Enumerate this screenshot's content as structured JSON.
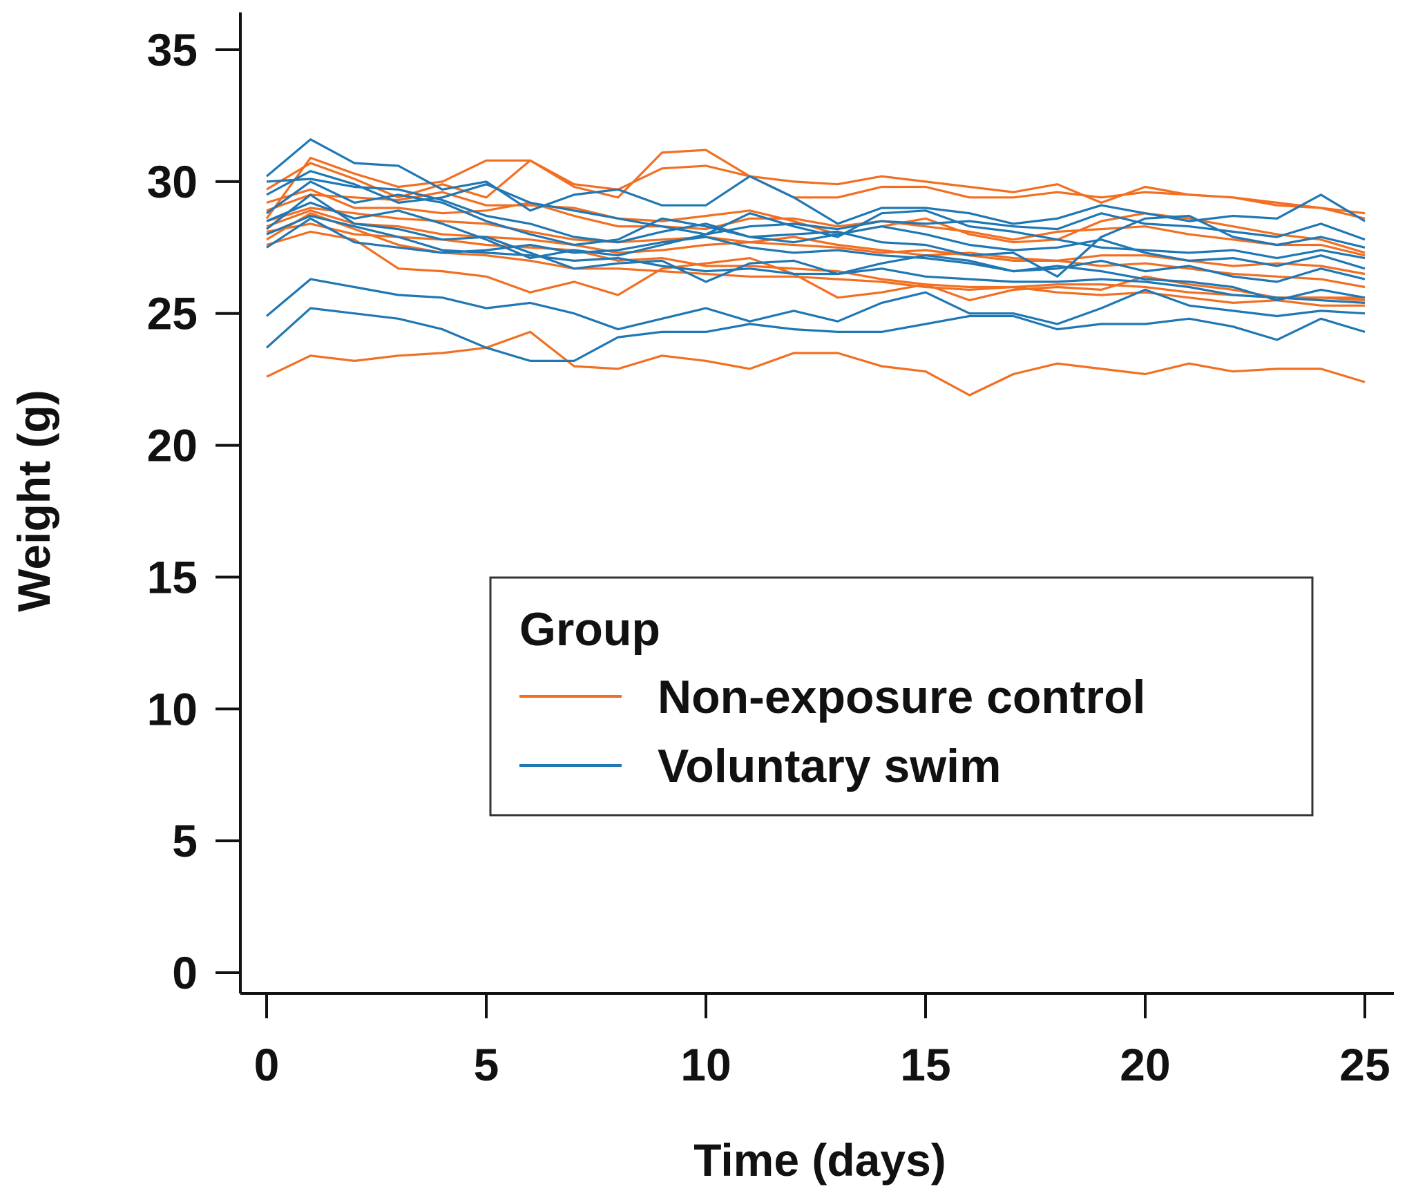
{
  "chart_data": {
    "type": "line",
    "title": "",
    "xlabel": "Time (days)",
    "ylabel": "Weight (g)",
    "xlim": [
      0,
      25
    ],
    "ylim": [
      0,
      35
    ],
    "xticks": [
      "0",
      "5",
      "10",
      "15",
      "20",
      "25"
    ],
    "yticks": [
      "0",
      "5",
      "10",
      "15",
      "20",
      "25",
      "30",
      "35"
    ],
    "grid": false,
    "legend": {
      "title": "Group",
      "position": "center-right",
      "entries": [
        {
          "name": "Non-exposure control",
          "color": "#f26f21"
        },
        {
          "name": "Voluntary swim",
          "color": "#1f77b4"
        }
      ]
    },
    "x": [
      0,
      1,
      2,
      3,
      4,
      5,
      6,
      7,
      8,
      9,
      10,
      11,
      12,
      13,
      14,
      15,
      16,
      17,
      18,
      19,
      20,
      21,
      22,
      23,
      24,
      25
    ],
    "series": [
      {
        "group": "Non-exposure control",
        "color": "#f26f21",
        "values": [
          22.6,
          23.4,
          23.2,
          23.4,
          23.5,
          23.7,
          24.3,
          23.0,
          22.9,
          23.4,
          23.2,
          22.9,
          23.5,
          23.5,
          23.0,
          22.8,
          21.9,
          22.7,
          23.1,
          22.9,
          22.7,
          23.1,
          22.8,
          22.9,
          22.9,
          22.4
        ]
      },
      {
        "group": "Non-exposure control",
        "color": "#f26f21",
        "values": [
          27.6,
          28.1,
          27.8,
          26.7,
          26.6,
          26.4,
          25.8,
          26.2,
          25.7,
          26.7,
          26.9,
          27.1,
          26.5,
          25.6,
          25.8,
          26.1,
          25.5,
          25.9,
          26.0,
          25.9,
          26.4,
          26.1,
          25.9,
          25.6,
          25.6,
          25.5
        ]
      },
      {
        "group": "Non-exposure control",
        "color": "#f26f21",
        "values": [
          28.6,
          30.9,
          30.3,
          29.8,
          30.0,
          30.8,
          30.8,
          29.8,
          29.4,
          31.1,
          31.2,
          30.2,
          30.0,
          29.9,
          30.2,
          30.0,
          29.8,
          29.6,
          29.9,
          29.2,
          29.8,
          29.5,
          29.4,
          29.2,
          29.0,
          28.8
        ]
      },
      {
        "group": "Non-exposure control",
        "color": "#f26f21",
        "values": [
          29.7,
          30.7,
          30.1,
          29.4,
          29.9,
          29.4,
          30.8,
          29.9,
          29.7,
          30.5,
          30.6,
          30.2,
          29.4,
          29.4,
          29.8,
          29.8,
          29.4,
          29.4,
          29.6,
          29.4,
          29.6,
          29.5,
          29.4,
          29.1,
          29.0,
          28.6
        ]
      },
      {
        "group": "Non-exposure control",
        "color": "#f26f21",
        "values": [
          28.9,
          29.5,
          29.4,
          29.3,
          29.6,
          29.1,
          29.1,
          29.0,
          28.6,
          28.5,
          28.7,
          28.9,
          28.5,
          28.0,
          28.3,
          28.6,
          28.0,
          27.7,
          27.8,
          28.5,
          28.8,
          28.6,
          28.3,
          28.0,
          27.8,
          27.3
        ]
      },
      {
        "group": "Non-exposure control",
        "color": "#f26f21",
        "values": [
          28.5,
          29.0,
          28.8,
          28.6,
          28.5,
          28.4,
          28.1,
          27.8,
          27.7,
          27.8,
          27.9,
          27.7,
          27.9,
          27.6,
          27.4,
          27.2,
          27.3,
          27.1,
          27.0,
          27.2,
          27.2,
          27.0,
          26.8,
          26.9,
          26.8,
          26.5
        ]
      },
      {
        "group": "Non-exposure control",
        "color": "#f26f21",
        "values": [
          28.1,
          28.4,
          28.0,
          27.9,
          27.8,
          27.6,
          27.5,
          27.4,
          27.0,
          27.1,
          26.8,
          26.8,
          26.7,
          26.6,
          26.3,
          26.1,
          26.0,
          26.0,
          25.8,
          25.7,
          25.8,
          25.6,
          25.4,
          25.5,
          25.3,
          25.3
        ]
      },
      {
        "group": "Non-exposure control",
        "color": "#f26f21",
        "values": [
          27.8,
          28.8,
          28.2,
          27.6,
          27.3,
          27.2,
          27.0,
          26.7,
          26.7,
          26.6,
          26.5,
          26.4,
          26.4,
          26.3,
          26.2,
          26.0,
          25.9,
          26.0,
          26.1,
          26.1,
          26.0,
          25.8,
          25.7,
          25.6,
          25.6,
          25.6
        ]
      },
      {
        "group": "Non-exposure control",
        "color": "#f26f21",
        "values": [
          29.2,
          29.7,
          29.0,
          29.0,
          28.8,
          28.9,
          29.2,
          28.7,
          28.3,
          28.3,
          28.2,
          28.6,
          28.6,
          28.3,
          28.5,
          28.3,
          28.1,
          27.8,
          28.1,
          28.2,
          28.3,
          28.0,
          27.8,
          27.6,
          27.6,
          27.2
        ]
      },
      {
        "group": "Non-exposure control",
        "color": "#f26f21",
        "values": [
          28.3,
          28.9,
          28.4,
          28.3,
          28.0,
          27.9,
          27.8,
          27.6,
          27.3,
          27.4,
          27.6,
          27.7,
          27.6,
          27.5,
          27.3,
          27.4,
          27.2,
          27.0,
          27.0,
          26.8,
          26.9,
          26.7,
          26.5,
          26.4,
          26.3,
          26.0
        ]
      },
      {
        "group": "Voluntary swim",
        "color": "#1f77b4",
        "values": [
          23.7,
          25.2,
          25.0,
          24.8,
          24.4,
          23.7,
          23.2,
          23.2,
          24.1,
          24.3,
          24.3,
          24.6,
          24.4,
          24.3,
          24.3,
          24.6,
          24.9,
          24.9,
          24.4,
          24.6,
          24.6,
          24.8,
          24.5,
          24.0,
          24.8,
          24.3
        ]
      },
      {
        "group": "Voluntary swim",
        "color": "#1f77b4",
        "values": [
          24.9,
          26.3,
          26.0,
          25.7,
          25.6,
          25.2,
          25.4,
          25.0,
          24.4,
          24.8,
          25.2,
          24.7,
          25.1,
          24.7,
          25.4,
          25.8,
          25.0,
          25.0,
          24.6,
          25.2,
          25.9,
          25.3,
          25.1,
          24.9,
          25.1,
          25.0
        ]
      },
      {
        "group": "Voluntary swim",
        "color": "#1f77b4",
        "values": [
          30.2,
          31.6,
          30.7,
          30.6,
          29.7,
          30.0,
          28.9,
          29.5,
          29.7,
          29.1,
          29.1,
          30.2,
          29.4,
          28.4,
          29.0,
          29.0,
          28.8,
          28.4,
          28.6,
          29.1,
          28.8,
          28.5,
          28.7,
          28.6,
          29.5,
          28.5
        ]
      },
      {
        "group": "Voluntary swim",
        "color": "#1f77b4",
        "values": [
          29.5,
          30.4,
          29.9,
          29.2,
          29.4,
          29.9,
          29.2,
          28.9,
          28.6,
          28.3,
          28.0,
          28.3,
          28.4,
          28.2,
          28.5,
          28.4,
          28.5,
          28.3,
          28.2,
          28.8,
          28.4,
          28.3,
          28.1,
          27.9,
          28.4,
          27.8
        ]
      },
      {
        "group": "Voluntary swim",
        "color": "#1f77b4",
        "values": [
          28.8,
          30.0,
          29.2,
          29.5,
          29.2,
          28.5,
          28.0,
          27.6,
          27.8,
          28.6,
          28.3,
          27.9,
          27.7,
          28.0,
          28.3,
          28.0,
          27.6,
          27.4,
          27.5,
          27.8,
          27.3,
          27.0,
          27.1,
          26.8,
          27.2,
          26.7
        ]
      },
      {
        "group": "Voluntary swim",
        "color": "#1f77b4",
        "values": [
          28.2,
          29.5,
          28.4,
          28.2,
          27.8,
          27.9,
          27.3,
          26.7,
          26.9,
          27.0,
          26.2,
          26.9,
          27.0,
          26.5,
          26.9,
          27.2,
          27.0,
          26.6,
          26.7,
          27.0,
          26.6,
          26.8,
          26.4,
          26.2,
          26.7,
          26.3
        ]
      },
      {
        "group": "Voluntary swim",
        "color": "#1f77b4",
        "values": [
          27.5,
          28.6,
          27.7,
          27.5,
          27.3,
          27.4,
          27.6,
          27.3,
          27.4,
          27.7,
          27.9,
          27.5,
          27.3,
          27.4,
          27.2,
          27.1,
          26.9,
          26.6,
          26.8,
          26.6,
          26.3,
          26.2,
          26.0,
          25.5,
          25.9,
          25.6
        ]
      },
      {
        "group": "Voluntary swim",
        "color": "#1f77b4",
        "values": [
          28.0,
          28.7,
          28.3,
          27.9,
          27.4,
          27.3,
          27.2,
          27.0,
          27.1,
          26.8,
          26.6,
          26.7,
          26.5,
          26.5,
          26.7,
          26.4,
          26.3,
          26.2,
          26.2,
          26.3,
          26.2,
          26.0,
          25.7,
          25.6,
          25.5,
          25.4
        ]
      },
      {
        "group": "Voluntary swim",
        "color": "#1f77b4",
        "values": [
          28.5,
          29.2,
          28.6,
          28.9,
          28.4,
          27.8,
          27.1,
          27.4,
          27.2,
          27.6,
          28.0,
          28.8,
          28.3,
          27.9,
          28.8,
          28.9,
          28.3,
          28.1,
          27.8,
          27.5,
          27.4,
          27.3,
          27.4,
          27.1,
          27.4,
          27.1
        ]
      },
      {
        "group": "Voluntary swim",
        "color": "#1f77b4",
        "values": [
          30.0,
          30.1,
          29.8,
          29.7,
          29.3,
          28.7,
          28.4,
          27.9,
          27.7,
          28.1,
          28.4,
          27.9,
          28.0,
          28.1,
          27.7,
          27.6,
          27.2,
          27.3,
          26.4,
          27.9,
          28.6,
          28.7,
          27.9,
          27.6,
          27.9,
          27.5
        ]
      }
    ]
  }
}
